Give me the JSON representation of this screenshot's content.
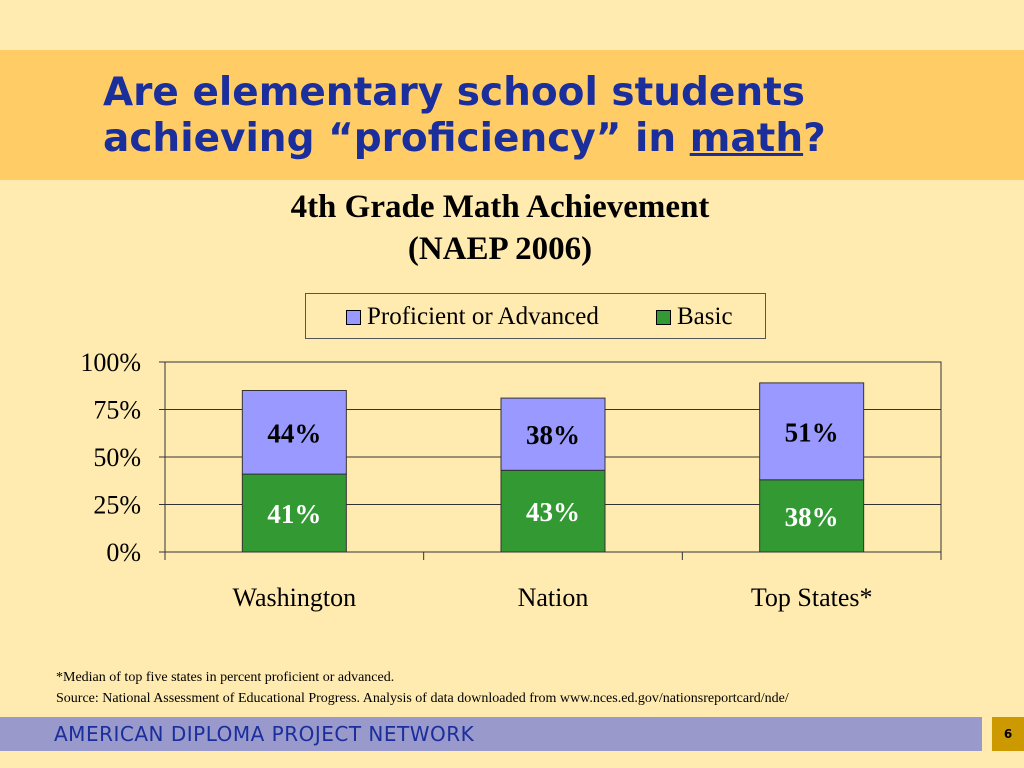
{
  "slide": {
    "title_line1": "Are elementary school students",
    "title_line2_prefix": "achieving “proficiency” in ",
    "title_line2_underlined": "math",
    "title_line2_suffix": "?",
    "footnote1": "*Median of top five states in percent proficient or advanced.",
    "footnote2": "Source: National Assessment of Educational Progress. Analysis of data downloaded from www.nces.ed.gov/nationsreportcard/nde/",
    "footer_text": "AMERICAN DIPLOMA PROJECT NETWORK",
    "page_number": "6"
  },
  "colors": {
    "proficient": "#9999FF",
    "basic": "#339933",
    "title": "#1A2E9C"
  },
  "chart_data": {
    "type": "bar",
    "stacked": true,
    "title": "4th Grade Math Achievement",
    "subtitle": "(NAEP 2006)",
    "categories": [
      "Washington",
      "Nation",
      "Top States*"
    ],
    "series": [
      {
        "name": "Basic",
        "values": [
          41,
          43,
          38
        ],
        "labels": [
          "41%",
          "43%",
          "38%"
        ]
      },
      {
        "name": "Proficient or Advanced",
        "values": [
          44,
          38,
          51
        ],
        "labels": [
          "44%",
          "38%",
          "51%"
        ]
      }
    ],
    "ylim": [
      0,
      100
    ],
    "yticks": [
      0,
      25,
      50,
      75,
      100
    ],
    "ytick_labels": [
      "0%",
      "25%",
      "50%",
      "75%",
      "100%"
    ],
    "grid": true,
    "legend_position": "top"
  }
}
